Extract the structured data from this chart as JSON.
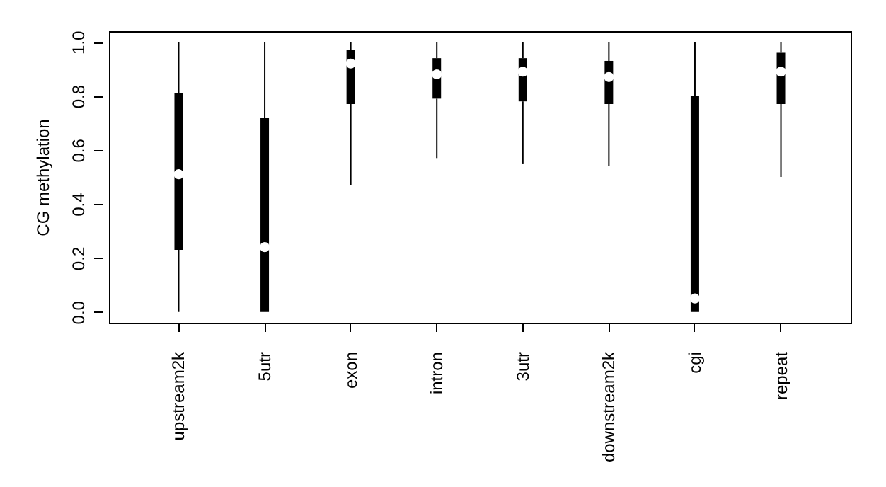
{
  "chart_data": {
    "type": "box",
    "ylabel": "CG  methylation",
    "categories": [
      "upstream2k",
      "5utr",
      "exon",
      "intron",
      "3utr",
      "downstream2k",
      "cgi",
      "repeat"
    ],
    "boxes": [
      {
        "low": 0,
        "q1": 0.23,
        "median": 0.51,
        "q3": 0.81,
        "high": 1
      },
      {
        "low": 0,
        "q1": 0,
        "median": 0.24,
        "q3": 0.72,
        "high": 1
      },
      {
        "low": 0.47,
        "q1": 0.77,
        "median": 0.92,
        "q3": 0.97,
        "high": 1
      },
      {
        "low": 0.57,
        "q1": 0.79,
        "median": 0.88,
        "q3": 0.94,
        "high": 1
      },
      {
        "low": 0.55,
        "q1": 0.78,
        "median": 0.89,
        "q3": 0.94,
        "high": 1
      },
      {
        "low": 0.54,
        "q1": 0.77,
        "median": 0.87,
        "q3": 0.93,
        "high": 1
      },
      {
        "low": 0,
        "q1": 0,
        "median": 0.05,
        "q3": 0.8,
        "high": 1
      },
      {
        "low": 0.5,
        "q1": 0.77,
        "median": 0.89,
        "q3": 0.96,
        "high": 1
      }
    ],
    "ylim": [
      -0.04,
      1.04
    ],
    "yticks": [
      {
        "value": 0,
        "label": "0.0"
      },
      {
        "value": 0.2,
        "label": "0.2"
      },
      {
        "value": 0.4,
        "label": "0.4"
      },
      {
        "value": 0.6,
        "label": "0.6"
      },
      {
        "value": 0.8,
        "label": "0.8"
      },
      {
        "value": 1,
        "label": "1.0"
      }
    ],
    "grid": false
  }
}
